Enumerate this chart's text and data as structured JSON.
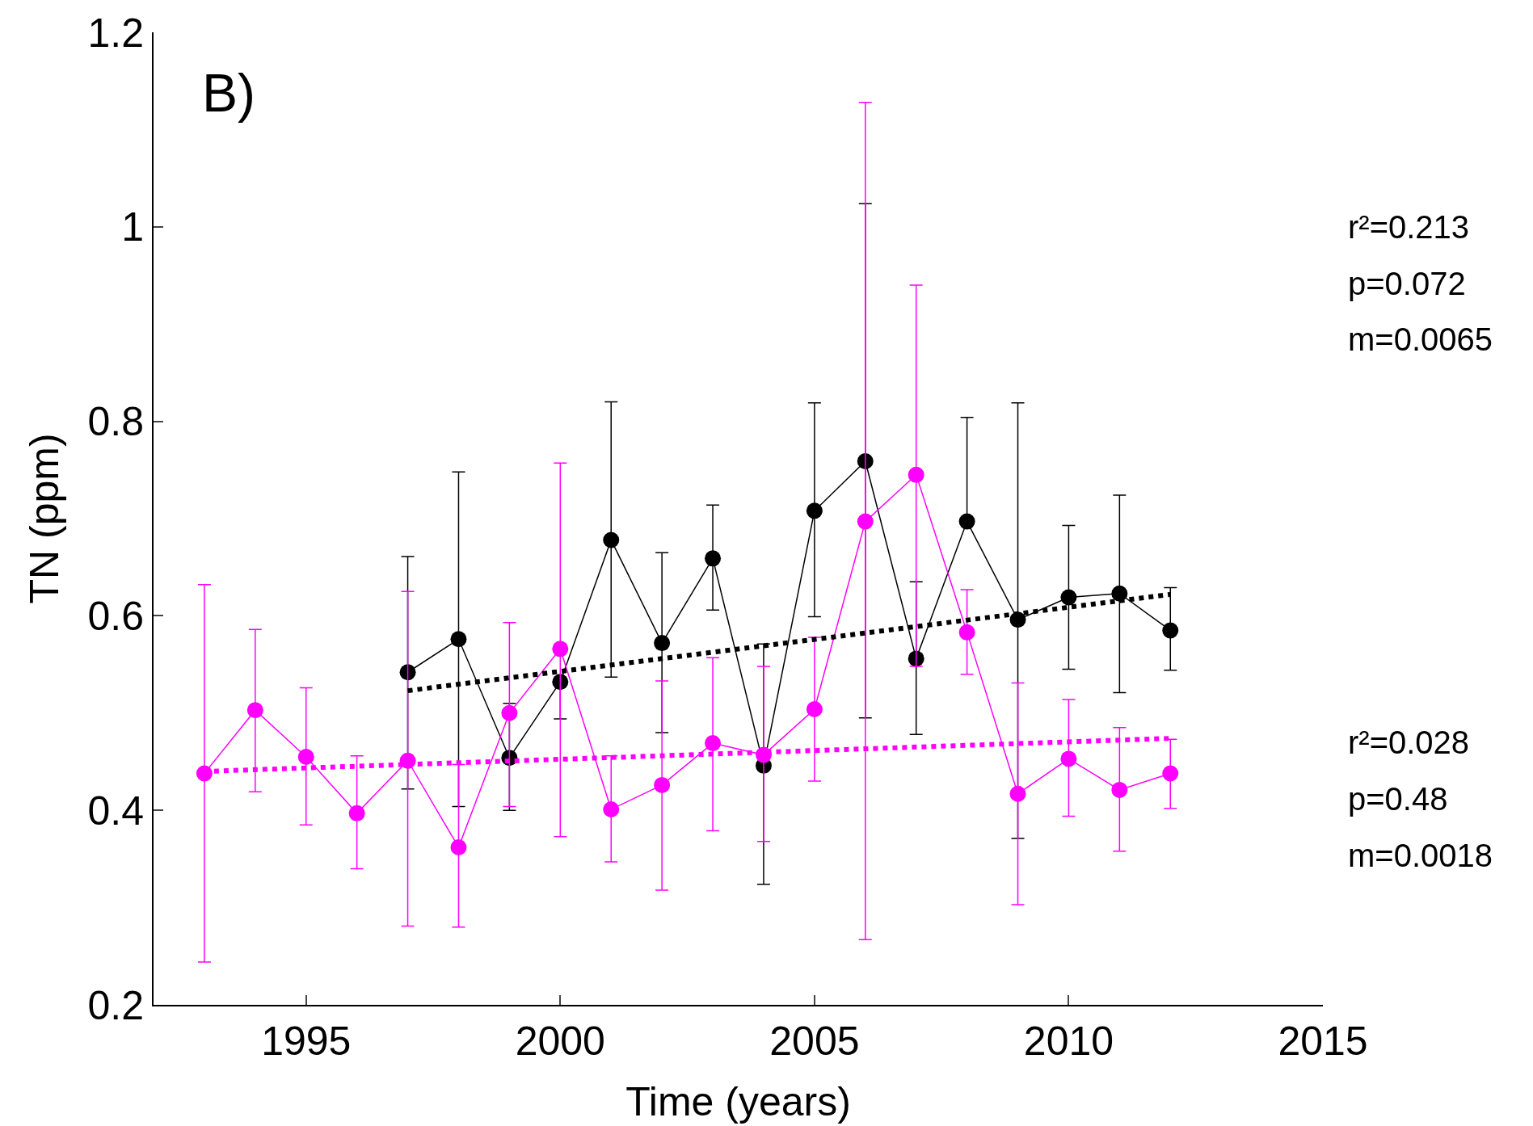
{
  "chart_data": {
    "type": "line",
    "title": "B)",
    "xlabel": "Time (years)",
    "ylabel": "TN (ppm)",
    "x": [
      1993,
      1994,
      1995,
      1996,
      1997,
      1998,
      1999,
      2000,
      2001,
      2002,
      2003,
      2004,
      2005,
      2006,
      2007,
      2008,
      2009,
      2010,
      2011,
      2012
    ],
    "series": [
      {
        "color": "#000000",
        "marker": "circle",
        "line_style": "solid",
        "x": [
          1997,
          1998,
          1999,
          2000,
          2001,
          2002,
          2003,
          2004,
          2005,
          2006,
          2007,
          2008,
          2009,
          2010,
          2011,
          2012
        ],
        "values": [
          0.542,
          0.576,
          0.454,
          0.532,
          0.678,
          0.572,
          0.659,
          0.446,
          0.708,
          0.759,
          0.556,
          0.697,
          0.596,
          0.619,
          0.623,
          0.585
        ],
        "errors": [
          [
            0.422,
            0.661
          ],
          [
            0.404,
            0.748
          ],
          [
            0.4,
            0.51
          ],
          [
            0.494,
            0.532
          ],
          [
            0.537,
            0.82
          ],
          [
            0.48,
            0.665
          ],
          [
            0.606,
            0.714
          ],
          [
            0.324,
            0.571
          ],
          [
            0.599,
            0.819
          ],
          [
            0.495,
            1.024
          ],
          [
            0.478,
            0.635
          ],
          [
            0.697,
            0.804
          ],
          [
            0.371,
            0.819
          ],
          [
            0.545,
            0.693
          ],
          [
            0.521,
            0.724
          ],
          [
            0.544,
            0.629
          ]
        ]
      },
      {
        "color": "#ff00ff",
        "marker": "circle",
        "line_style": "solid",
        "values": [
          0.438,
          0.503,
          0.455,
          0.397,
          0.451,
          0.362,
          0.5,
          0.566,
          0.401,
          0.426,
          0.469,
          0.457,
          0.504,
          0.697,
          0.745,
          0.583,
          0.417,
          0.453,
          0.421,
          0.438
        ],
        "errors": [
          [
            0.244,
            0.632
          ],
          [
            0.419,
            0.586
          ],
          [
            0.385,
            0.526
          ],
          [
            0.34,
            0.456
          ],
          [
            0.281,
            0.625
          ],
          [
            0.28,
            0.447
          ],
          [
            0.404,
            0.593
          ],
          [
            0.373,
            0.757
          ],
          [
            0.347,
            0.456
          ],
          [
            0.318,
            0.533
          ],
          [
            0.379,
            0.557
          ],
          [
            0.368,
            0.548
          ],
          [
            0.43,
            0.578
          ],
          [
            0.267,
            1.128
          ],
          [
            0.548,
            0.94
          ],
          [
            0.54,
            0.627
          ],
          [
            0.303,
            0.531
          ],
          [
            0.394,
            0.514
          ],
          [
            0.358,
            0.485
          ],
          [
            0.402,
            0.473
          ]
        ]
      },
      {
        "type": "line",
        "color": "#000000",
        "marker": "none",
        "line_style": "dotted",
        "x": [
          1997,
          2012
        ],
        "values": [
          0.523,
          0.622
        ]
      },
      {
        "type": "line",
        "color": "#ff00ff",
        "marker": "none",
        "line_style": "dotted",
        "x": [
          1993,
          2012
        ],
        "values": [
          0.44,
          0.474
        ]
      }
    ],
    "annotations": [
      "r²=0.213",
      "p=0.072",
      "m=0.0065",
      "r²=0.028",
      "p=0.48",
      "m=0.0018"
    ],
    "xlim": [
      1992,
      2015
    ],
    "xticks": [
      1995,
      2000,
      2005,
      2010,
      2015
    ],
    "ylim": [
      0.2,
      1.2
    ],
    "yticks": [
      0.2,
      0.4,
      0.6,
      0.8,
      1,
      1.2
    ],
    "grid": false
  }
}
